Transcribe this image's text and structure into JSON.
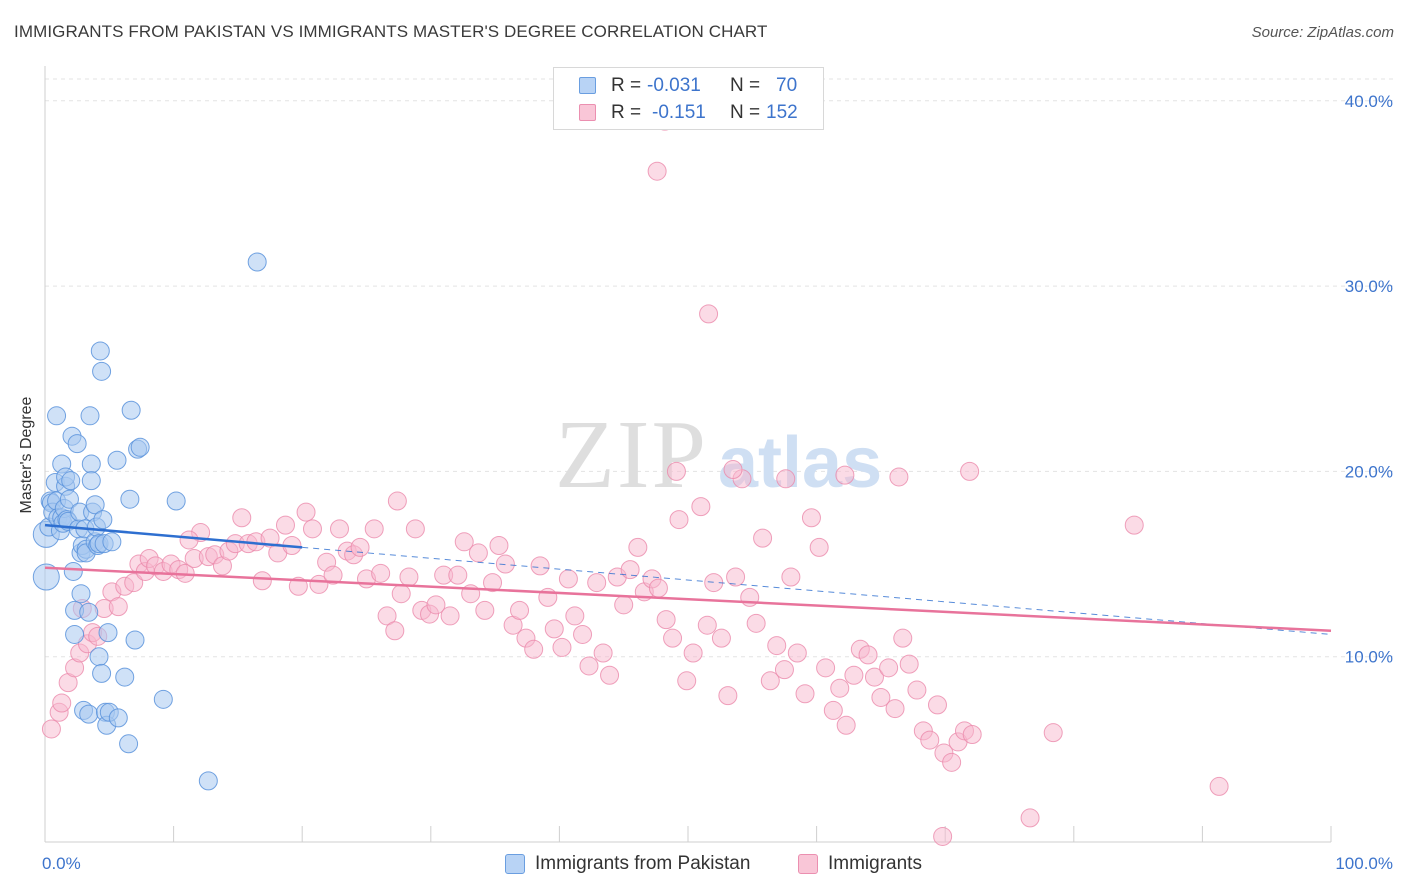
{
  "title": "IMMIGRANTS FROM PAKISTAN VS IMMIGRANTS MASTER'S DEGREE CORRELATION CHART",
  "source_label": "Source:",
  "source_value": "ZipAtlas.com",
  "watermark_zip": "ZIP",
  "watermark_atlas": "atlas",
  "legend": {
    "r_label": "R =",
    "n_label": "N =",
    "series1": {
      "r": "-0.031",
      "n": "70"
    },
    "series2": {
      "r": "-0.151",
      "n": "152"
    }
  },
  "colors": {
    "blue_fill": "#a8c8f0",
    "blue_stroke": "#5b93dc",
    "blue_line": "#2e6fd0",
    "pink_fill": "#f7b8cd",
    "pink_stroke": "#eb89ab",
    "pink_line": "#e8739b",
    "axis_text": "#3d74cc"
  },
  "chart_data": {
    "type": "scatter",
    "title": "IMMIGRANTS FROM PAKISTAN VS IMMIGRANTS MASTER'S DEGREE CORRELATION CHART",
    "xlabel": "",
    "ylabel": "Master's Degree",
    "xlim": [
      0,
      100
    ],
    "ylim": [
      0,
      41.5
    ],
    "x_tick_labels": [
      "0.0%",
      "100.0%"
    ],
    "y_ticks": [
      10,
      20,
      30,
      40
    ],
    "y_tick_labels": [
      "10.0%",
      "20.0%",
      "30.0%",
      "40.0%"
    ],
    "series": [
      {
        "name": "Immigrants from Pakistan",
        "R": -0.031,
        "N": 70,
        "trend_solid": {
          "x": [
            0,
            20
          ],
          "y": [
            17.1,
            15.9
          ]
        },
        "trend_dashed": {
          "x": [
            20,
            100
          ],
          "y": [
            15.9,
            11.2
          ]
        },
        "points": [
          [
            0.1,
            16.6
          ],
          [
            0.1,
            14.3
          ],
          [
            0.3,
            17.0
          ],
          [
            0.4,
            18.4
          ],
          [
            0.5,
            18.3
          ],
          [
            0.6,
            17.8
          ],
          [
            0.8,
            19.4
          ],
          [
            0.9,
            23.0
          ],
          [
            0.9,
            18.4
          ],
          [
            1.0,
            17.5
          ],
          [
            1.2,
            16.8
          ],
          [
            1.3,
            20.4
          ],
          [
            1.3,
            17.5
          ],
          [
            1.4,
            17.2
          ],
          [
            1.5,
            18.0
          ],
          [
            1.6,
            19.2
          ],
          [
            1.6,
            19.7
          ],
          [
            1.7,
            17.4
          ],
          [
            1.8,
            17.3
          ],
          [
            1.9,
            18.5
          ],
          [
            2.0,
            19.5
          ],
          [
            2.1,
            21.9
          ],
          [
            2.2,
            14.6
          ],
          [
            2.3,
            12.5
          ],
          [
            2.3,
            11.2
          ],
          [
            2.5,
            21.5
          ],
          [
            2.6,
            16.9
          ],
          [
            2.7,
            17.8
          ],
          [
            2.8,
            13.4
          ],
          [
            2.8,
            15.6
          ],
          [
            2.9,
            16.0
          ],
          [
            3.0,
            7.1
          ],
          [
            3.1,
            16.9
          ],
          [
            3.2,
            15.8
          ],
          [
            3.2,
            15.6
          ],
          [
            3.4,
            12.4
          ],
          [
            3.4,
            6.9
          ],
          [
            3.5,
            23.0
          ],
          [
            3.6,
            20.4
          ],
          [
            3.6,
            19.5
          ],
          [
            3.7,
            17.8
          ],
          [
            3.9,
            16.2
          ],
          [
            3.9,
            18.2
          ],
          [
            4.0,
            17.0
          ],
          [
            4.1,
            16.0
          ],
          [
            4.2,
            16.1
          ],
          [
            4.2,
            10.0
          ],
          [
            4.3,
            26.5
          ],
          [
            4.4,
            9.1
          ],
          [
            4.4,
            25.4
          ],
          [
            4.5,
            17.4
          ],
          [
            4.6,
            16.1
          ],
          [
            4.7,
            7.0
          ],
          [
            4.8,
            6.3
          ],
          [
            4.9,
            11.3
          ],
          [
            5.0,
            7.0
          ],
          [
            5.2,
            16.2
          ],
          [
            5.6,
            20.6
          ],
          [
            5.7,
            6.7
          ],
          [
            6.2,
            8.9
          ],
          [
            6.5,
            5.3
          ],
          [
            6.6,
            18.5
          ],
          [
            6.7,
            23.3
          ],
          [
            7.0,
            10.9
          ],
          [
            7.2,
            21.2
          ],
          [
            7.4,
            21.3
          ],
          [
            9.2,
            7.7
          ],
          [
            10.2,
            18.4
          ],
          [
            12.7,
            3.3
          ],
          [
            16.5,
            31.3
          ]
        ],
        "point_sizes": {
          "0.1": 14
        }
      },
      {
        "name": "Immigrants",
        "R": -0.151,
        "N": 152,
        "trend_solid": {
          "x": [
            0,
            100
          ],
          "y": [
            14.8,
            11.4
          ]
        },
        "points": [
          [
            0.5,
            6.1
          ],
          [
            1.1,
            7.0
          ],
          [
            1.3,
            7.5
          ],
          [
            1.8,
            8.6
          ],
          [
            2.3,
            9.4
          ],
          [
            2.7,
            10.2
          ],
          [
            2.9,
            12.6
          ],
          [
            3.3,
            10.7
          ],
          [
            3.7,
            11.3
          ],
          [
            4.1,
            11.1
          ],
          [
            4.6,
            12.6
          ],
          [
            5.2,
            13.5
          ],
          [
            5.7,
            12.7
          ],
          [
            6.2,
            13.8
          ],
          [
            6.9,
            14.0
          ],
          [
            7.3,
            15.0
          ],
          [
            7.8,
            14.6
          ],
          [
            8.1,
            15.3
          ],
          [
            8.6,
            14.9
          ],
          [
            9.2,
            14.6
          ],
          [
            9.8,
            15.0
          ],
          [
            10.4,
            14.7
          ],
          [
            10.9,
            14.5
          ],
          [
            11.6,
            15.3
          ],
          [
            12.1,
            16.7
          ],
          [
            12.7,
            15.4
          ],
          [
            13.2,
            15.5
          ],
          [
            13.8,
            14.9
          ],
          [
            14.3,
            15.7
          ],
          [
            14.8,
            16.1
          ],
          [
            15.3,
            17.5
          ],
          [
            15.8,
            16.1
          ],
          [
            16.4,
            16.2
          ],
          [
            16.9,
            14.1
          ],
          [
            17.5,
            16.4
          ],
          [
            18.1,
            15.6
          ],
          [
            18.7,
            17.1
          ],
          [
            19.2,
            16.0
          ],
          [
            19.7,
            13.8
          ],
          [
            20.3,
            17.8
          ],
          [
            20.8,
            16.9
          ],
          [
            21.3,
            13.9
          ],
          [
            21.9,
            15.1
          ],
          [
            22.4,
            14.4
          ],
          [
            22.9,
            16.9
          ],
          [
            23.5,
            15.7
          ],
          [
            24.0,
            15.5
          ],
          [
            24.5,
            15.9
          ],
          [
            25.0,
            14.2
          ],
          [
            25.6,
            16.9
          ],
          [
            26.1,
            14.5
          ],
          [
            26.6,
            12.2
          ],
          [
            27.2,
            11.4
          ],
          [
            27.7,
            13.4
          ],
          [
            28.3,
            14.3
          ],
          [
            28.8,
            16.9
          ],
          [
            29.3,
            12.5
          ],
          [
            29.9,
            12.3
          ],
          [
            30.4,
            12.8
          ],
          [
            31.0,
            14.4
          ],
          [
            31.5,
            12.2
          ],
          [
            32.1,
            14.4
          ],
          [
            32.6,
            16.2
          ],
          [
            33.1,
            13.4
          ],
          [
            33.7,
            15.6
          ],
          [
            34.2,
            12.5
          ],
          [
            34.8,
            14.0
          ],
          [
            35.3,
            16.0
          ],
          [
            35.8,
            15.0
          ],
          [
            36.4,
            11.7
          ],
          [
            36.9,
            12.5
          ],
          [
            37.4,
            11.0
          ],
          [
            38.0,
            10.4
          ],
          [
            38.5,
            14.9
          ],
          [
            39.1,
            13.2
          ],
          [
            39.6,
            11.5
          ],
          [
            40.2,
            10.5
          ],
          [
            40.7,
            14.2
          ],
          [
            41.2,
            12.2
          ],
          [
            41.8,
            11.2
          ],
          [
            42.3,
            9.5
          ],
          [
            42.9,
            14.0
          ],
          [
            43.4,
            10.2
          ],
          [
            43.9,
            9.0
          ],
          [
            44.5,
            14.3
          ],
          [
            45.0,
            12.8
          ],
          [
            45.5,
            14.7
          ],
          [
            46.1,
            15.9
          ],
          [
            46.6,
            13.5
          ],
          [
            47.2,
            14.2
          ],
          [
            47.7,
            13.7
          ],
          [
            48.3,
            12.0
          ],
          [
            48.8,
            11.0
          ],
          [
            49.3,
            17.4
          ],
          [
            49.9,
            8.7
          ],
          [
            50.4,
            10.2
          ],
          [
            51.0,
            18.1
          ],
          [
            51.5,
            11.7
          ],
          [
            52.0,
            14.0
          ],
          [
            52.6,
            11.0
          ],
          [
            53.1,
            7.9
          ],
          [
            53.7,
            14.3
          ],
          [
            54.2,
            19.6
          ],
          [
            54.8,
            13.2
          ],
          [
            55.3,
            11.8
          ],
          [
            55.8,
            16.4
          ],
          [
            56.4,
            8.7
          ],
          [
            56.9,
            10.6
          ],
          [
            57.5,
            9.3
          ],
          [
            58.0,
            14.3
          ],
          [
            58.5,
            10.2
          ],
          [
            59.1,
            8.0
          ],
          [
            59.6,
            17.5
          ],
          [
            60.2,
            15.9
          ],
          [
            60.7,
            9.4
          ],
          [
            61.3,
            7.1
          ],
          [
            61.8,
            8.3
          ],
          [
            62.3,
            6.3
          ],
          [
            62.9,
            9.0
          ],
          [
            63.4,
            10.4
          ],
          [
            64.0,
            10.1
          ],
          [
            64.5,
            8.9
          ],
          [
            65.0,
            7.8
          ],
          [
            65.6,
            9.4
          ],
          [
            66.1,
            7.2
          ],
          [
            66.7,
            11.0
          ],
          [
            67.2,
            9.6
          ],
          [
            67.8,
            8.2
          ],
          [
            68.3,
            6.0
          ],
          [
            68.8,
            5.5
          ],
          [
            69.4,
            7.4
          ],
          [
            69.9,
            4.8
          ],
          [
            70.5,
            4.3
          ],
          [
            71.0,
            5.4
          ],
          [
            71.5,
            6.0
          ],
          [
            72.1,
            5.8
          ],
          [
            49.1,
            20.0
          ],
          [
            53.5,
            20.1
          ],
          [
            57.6,
            19.6
          ],
          [
            62.2,
            19.8
          ],
          [
            66.4,
            19.7
          ],
          [
            71.9,
            20.0
          ],
          [
            11.2,
            16.3
          ],
          [
            27.4,
            18.4
          ],
          [
            47.6,
            36.2
          ],
          [
            48.2,
            38.9
          ],
          [
            51.6,
            28.5
          ],
          [
            84.7,
            17.1
          ],
          [
            91.3,
            3.0
          ],
          [
            76.6,
            1.3
          ],
          [
            69.8,
            0.3
          ],
          [
            78.4,
            5.9
          ]
        ]
      }
    ]
  },
  "bottom_legend": {
    "item1": "Immigrants from Pakistan",
    "item2": "Immigrants"
  }
}
